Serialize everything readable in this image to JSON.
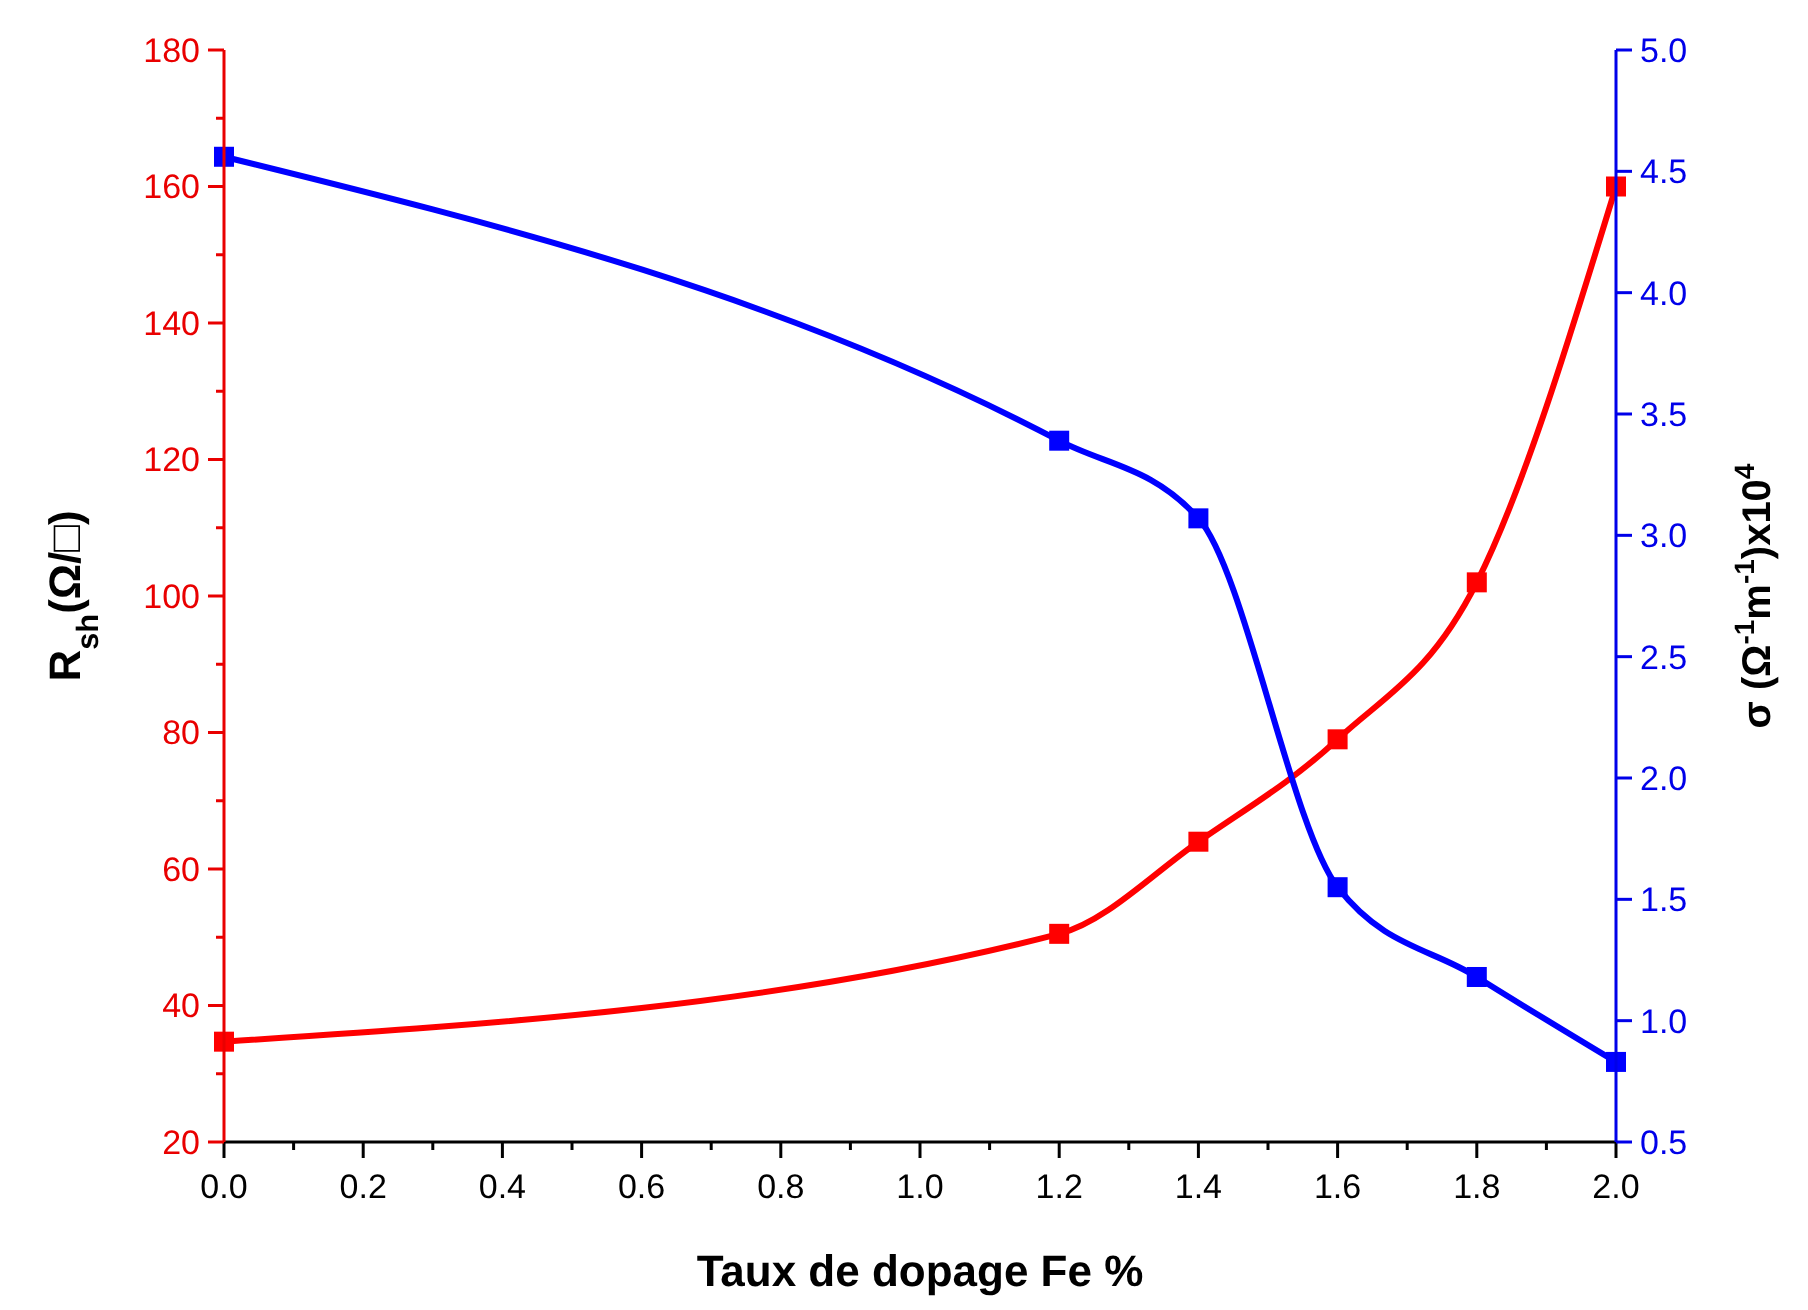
{
  "chart_data": {
    "type": "line",
    "xlabel": "Taux de dopage Fe %",
    "ylabel": "R$_{sh}$(Ω/□)",
    "y2label": "σ (Ω$^{-1}$m$^{-1}$)x10$^{4}$",
    "x": [
      0,
      1.2,
      1.4,
      1.6,
      1.8,
      2.0
    ],
    "series": [
      {
        "color": "#ff0000",
        "values": [
          34.7,
          50.5,
          64,
          79,
          102,
          160
        ]
      },
      {
        "color": "#0000ff",
        "axis": "y2",
        "values": [
          4.56,
          3.39,
          3.07,
          1.55,
          1.18,
          0.83
        ]
      }
    ],
    "xlim": [
      0,
      2
    ],
    "xticks": [
      {
        "value": 0,
        "label": "0.0"
      },
      {
        "value": 0.1,
        "label": null
      },
      0.2,
      {
        "value": 0.3,
        "label": null
      },
      0.4,
      {
        "value": 0.5,
        "label": null
      },
      0.6,
      {
        "value": 0.7,
        "label": null
      },
      0.8,
      {
        "value": 0.9,
        "label": null
      },
      {
        "value": 1,
        "label": "1.0"
      },
      {
        "value": 1.1,
        "label": null
      },
      1.2,
      {
        "value": 1.3,
        "label": null
      },
      1.4,
      {
        "value": 1.5,
        "label": null
      },
      1.6,
      {
        "value": 1.7,
        "label": null
      },
      1.8,
      {
        "value": 1.9,
        "label": null
      },
      {
        "value": 2,
        "label": "2.0"
      }
    ],
    "ylim": [
      20,
      180
    ],
    "yticks": [
      20,
      {
        "value": 30,
        "label": null
      },
      40,
      {
        "value": 50,
        "label": null
      },
      60,
      {
        "value": 70,
        "label": null
      },
      80,
      {
        "value": 90,
        "label": null
      },
      100,
      {
        "value": 110,
        "label": null
      },
      120,
      {
        "value": 130,
        "label": null
      },
      140,
      {
        "value": 150,
        "label": null
      },
      160,
      {
        "value": 170,
        "label": null
      },
      180
    ],
    "y2lim": [
      0.5,
      5.0
    ],
    "y2ticks": [
      0.5,
      {
        "value": 1,
        "label": "1.0"
      },
      1.5,
      {
        "value": 2,
        "label": "2.0"
      },
      2.5,
      {
        "value": 3,
        "label": "3.0"
      },
      3.5,
      {
        "value": 4,
        "label": "4.0"
      },
      4.5,
      {
        "value": 5,
        "label": "5.0"
      }
    ],
    "marker": "square",
    "line_style": "solid",
    "grid": false
  }
}
